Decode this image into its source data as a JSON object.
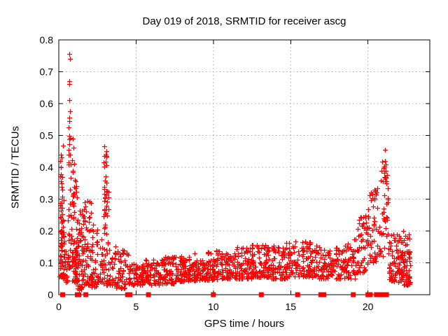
{
  "window": {
    "title": "Day 019 of 2018, SRMTID for receiver ascg"
  },
  "chart_data": {
    "type": "scatter",
    "title": "Day 019 of 2018, SRMTID for receiver ascg",
    "xlabel": "GPS time / hours",
    "ylabel": "SRMTID / TECUs",
    "xlim": [
      0,
      24
    ],
    "ylim": [
      0,
      0.8
    ],
    "xticks": [
      "0",
      "5",
      "10",
      "15",
      "20"
    ],
    "xtick_values": [
      0,
      5,
      10,
      15,
      20
    ],
    "yticks": [
      "0",
      "0.1",
      "0.2",
      "0.3",
      "0.4",
      "0.5",
      "0.6",
      "0.7",
      "0.8"
    ],
    "ytick_values": [
      0,
      0.1,
      0.2,
      0.3,
      0.4,
      0.5,
      0.6,
      0.7,
      0.8
    ],
    "grid": true,
    "legend": "none",
    "colors": {
      "marker": "#ff0000",
      "flag_marker": "#ff0000",
      "grid": "#a6a6a6",
      "axis": "#000000",
      "background": "#ffffff",
      "text": "#000000"
    },
    "series": [
      {
        "name": "srmtid",
        "marker": "plus",
        "color": "#ff0000",
        "description": "SRMTID scatter values; dense band ~0.03-0.17 TECUs all day with high-activity spikes near 0-1 h (to 0.755), ~3 h (to 0.465) and ~19.5-21.3 h (to 0.455)",
        "outlier_points": [
          [
            0.68,
            0.755
          ],
          [
            0.72,
            0.74
          ],
          [
            0.66,
            0.67
          ],
          [
            0.7,
            0.662
          ],
          [
            0.68,
            0.61
          ],
          [
            0.71,
            0.576
          ],
          [
            0.66,
            0.556
          ],
          [
            0.69,
            0.545
          ],
          [
            0.64,
            0.526
          ],
          [
            0.68,
            0.5
          ],
          [
            0.72,
            0.492
          ],
          [
            0.66,
            0.487
          ],
          [
            0.7,
            0.472
          ],
          [
            0.64,
            0.455
          ],
          [
            0.74,
            0.44
          ],
          [
            0.28,
            0.468
          ],
          [
            0.13,
            0.44
          ],
          [
            0.2,
            0.43
          ],
          [
            0.1,
            0.42
          ],
          [
            0.12,
            0.4
          ],
          [
            0.08,
            0.372
          ],
          [
            0.9,
            0.49
          ],
          [
            0.95,
            0.462
          ],
          [
            1.0,
            0.41
          ],
          [
            0.92,
            0.385
          ],
          [
            1.05,
            0.36
          ],
          [
            2.96,
            0.465
          ],
          [
            3.02,
            0.44
          ],
          [
            3.06,
            0.432
          ],
          [
            21.1,
            0.455
          ],
          [
            21.05,
            0.402
          ],
          [
            21.14,
            0.39
          ],
          [
            21.08,
            0.368
          ],
          [
            20.98,
            0.356
          ],
          [
            21.18,
            0.35
          ],
          [
            20.6,
            0.335
          ],
          [
            20.52,
            0.315
          ],
          [
            19.5,
            0.243
          ],
          [
            19.44,
            0.225
          ],
          [
            22.3,
            0.2
          ],
          [
            22.4,
            0.185
          ]
        ],
        "density_clusters": [
          [
            0.05,
            0.35,
            0.05,
            0.34,
            55,
            1.8
          ],
          [
            0.05,
            0.3,
            0.15,
            0.44,
            18,
            1.2
          ],
          [
            0.35,
            0.6,
            0.04,
            0.18,
            20,
            1.6
          ],
          [
            0.6,
            0.85,
            0.08,
            0.44,
            28,
            1.4
          ],
          [
            0.85,
            1.2,
            0.04,
            0.33,
            65,
            1.9
          ],
          [
            0.85,
            1.15,
            0.3,
            0.42,
            8,
            1.2
          ],
          [
            1.2,
            1.6,
            0.015,
            0.27,
            60,
            1.8
          ],
          [
            1.6,
            2.1,
            0.03,
            0.3,
            55,
            1.9
          ],
          [
            2.1,
            2.5,
            0.025,
            0.22,
            38,
            1.8
          ],
          [
            2.5,
            2.85,
            0.04,
            0.18,
            22,
            1.7
          ],
          [
            2.88,
            3.22,
            0.03,
            0.34,
            40,
            1.6
          ],
          [
            2.9,
            3.15,
            0.2,
            0.465,
            22,
            1.0
          ],
          [
            3.25,
            3.7,
            0.03,
            0.16,
            28,
            1.7
          ],
          [
            3.7,
            4.5,
            0.02,
            0.14,
            50,
            1.7
          ],
          [
            4.5,
            5.5,
            0.03,
            0.1,
            70,
            1.5
          ],
          [
            5.5,
            6.5,
            0.03,
            0.11,
            70,
            1.5
          ],
          [
            6.5,
            7.5,
            0.035,
            0.12,
            72,
            1.5
          ],
          [
            7.5,
            8.5,
            0.04,
            0.12,
            72,
            1.5
          ],
          [
            8.5,
            9.5,
            0.045,
            0.13,
            72,
            1.5
          ],
          [
            9.5,
            10.5,
            0.045,
            0.14,
            72,
            1.5
          ],
          [
            10.5,
            11.5,
            0.05,
            0.14,
            72,
            1.5
          ],
          [
            11.5,
            12.5,
            0.05,
            0.15,
            72,
            1.5
          ],
          [
            12.5,
            13.5,
            0.055,
            0.16,
            72,
            1.5
          ],
          [
            13.5,
            14.5,
            0.05,
            0.16,
            68,
            1.5
          ],
          [
            14.5,
            15.5,
            0.05,
            0.17,
            68,
            1.5
          ],
          [
            15.5,
            16.5,
            0.055,
            0.17,
            68,
            1.5
          ],
          [
            16.5,
            17.5,
            0.05,
            0.16,
            68,
            1.5
          ],
          [
            17.5,
            18.5,
            0.05,
            0.15,
            62,
            1.5
          ],
          [
            18.5,
            19.3,
            0.05,
            0.18,
            48,
            1.5
          ],
          [
            19.3,
            20.0,
            0.07,
            0.25,
            52,
            1.4
          ],
          [
            20.0,
            20.7,
            0.1,
            0.33,
            45,
            1.3
          ],
          [
            20.7,
            21.35,
            0.12,
            0.42,
            48,
            1.3
          ],
          [
            21.35,
            22.2,
            0.04,
            0.19,
            85,
            1.5
          ],
          [
            22.2,
            22.75,
            0.03,
            0.19,
            60,
            1.5
          ]
        ]
      },
      {
        "name": "flagged-epochs",
        "marker": "filled-square",
        "color": "#ff0000",
        "y": 0,
        "x": [
          0.25,
          1.2,
          1.3,
          1.75,
          4.45,
          4.6,
          5.8,
          10.0,
          13.1,
          15.45,
          16.95,
          17.15,
          19.05,
          20.0,
          20.15,
          20.55,
          20.7,
          20.95,
          21.2
        ]
      }
    ]
  }
}
